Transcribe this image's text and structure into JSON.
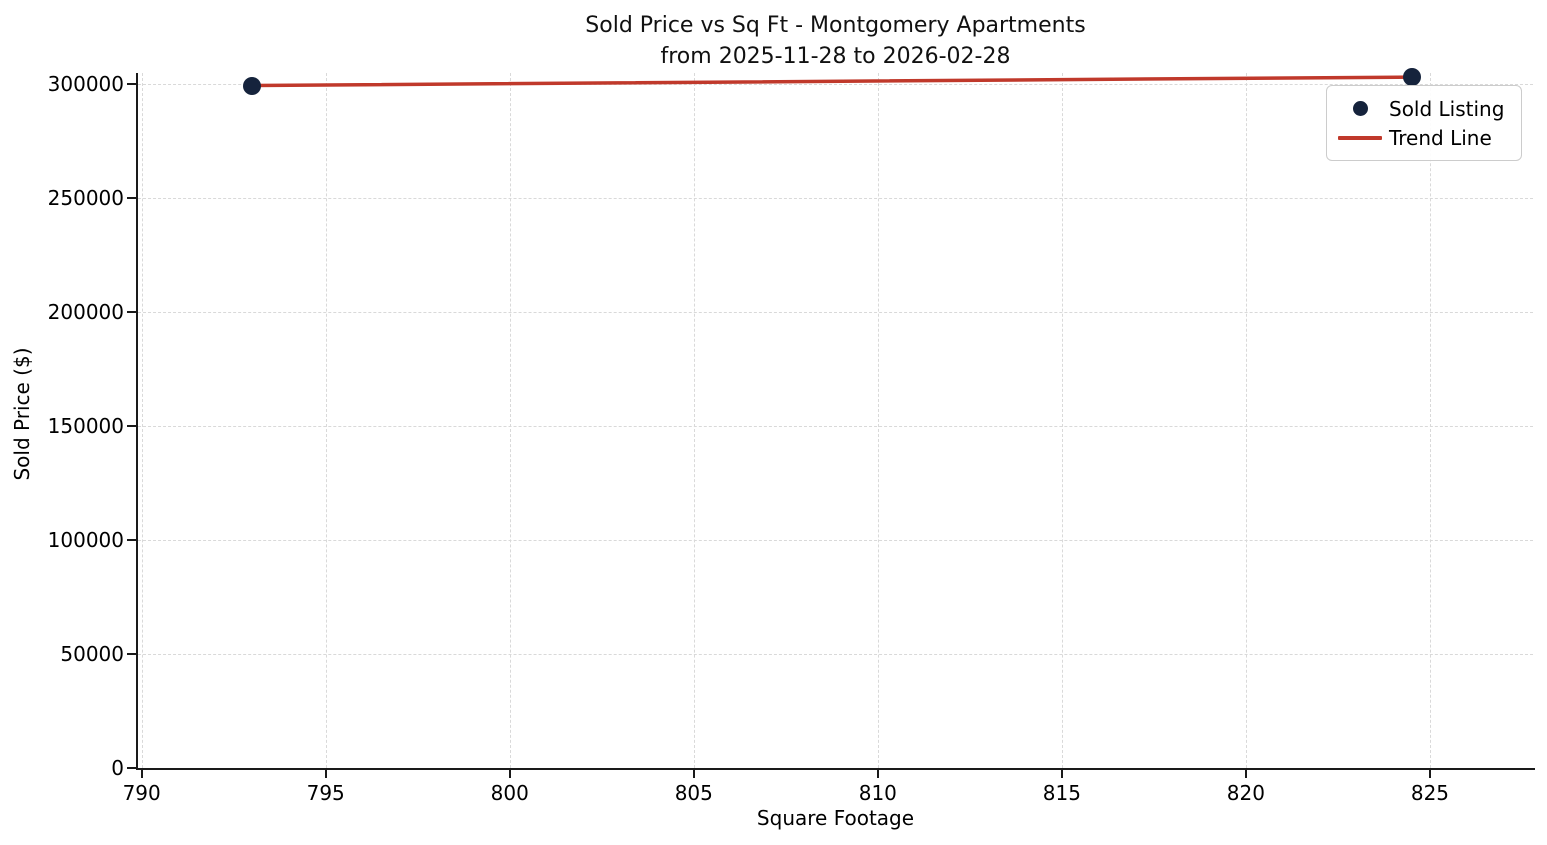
{
  "chart_data": {
    "type": "scatter",
    "title": "Sold Price vs Sq Ft - Montgomery Apartments",
    "subtitle": "from 2025-11-28 to 2026-02-28",
    "xlabel": "Square Footage",
    "ylabel": "Sold Price ($)",
    "xlim": [
      789.9,
      827.8
    ],
    "ylim": [
      0,
      305000
    ],
    "x_ticks": [
      790,
      795,
      800,
      805,
      810,
      815,
      820,
      825
    ],
    "y_ticks": [
      0,
      50000,
      100000,
      150000,
      200000,
      250000,
      300000
    ],
    "grid": true,
    "grid_style": "dashed",
    "background_color": "#ffffff",
    "gridline_color": "#d9d9d9",
    "spine_color": "#1a1a1a",
    "legend": {
      "position": "upper right",
      "entries": [
        {
          "label": "Sold Listing",
          "marker": "dot",
          "color": "#15233c"
        },
        {
          "label": "Trend Line",
          "marker": "line",
          "color": "#c0392b"
        }
      ]
    },
    "series": [
      {
        "name": "Sold Listing",
        "type": "scatter",
        "color": "#15233c",
        "points": [
          {
            "x": 793,
            "y": 299500
          },
          {
            "x": 824.5,
            "y": 303200
          }
        ]
      },
      {
        "name": "Trend Line",
        "type": "line",
        "color": "#c0392b",
        "points": [
          {
            "x": 793,
            "y": 299500
          },
          {
            "x": 824.5,
            "y": 303200
          }
        ]
      }
    ]
  }
}
